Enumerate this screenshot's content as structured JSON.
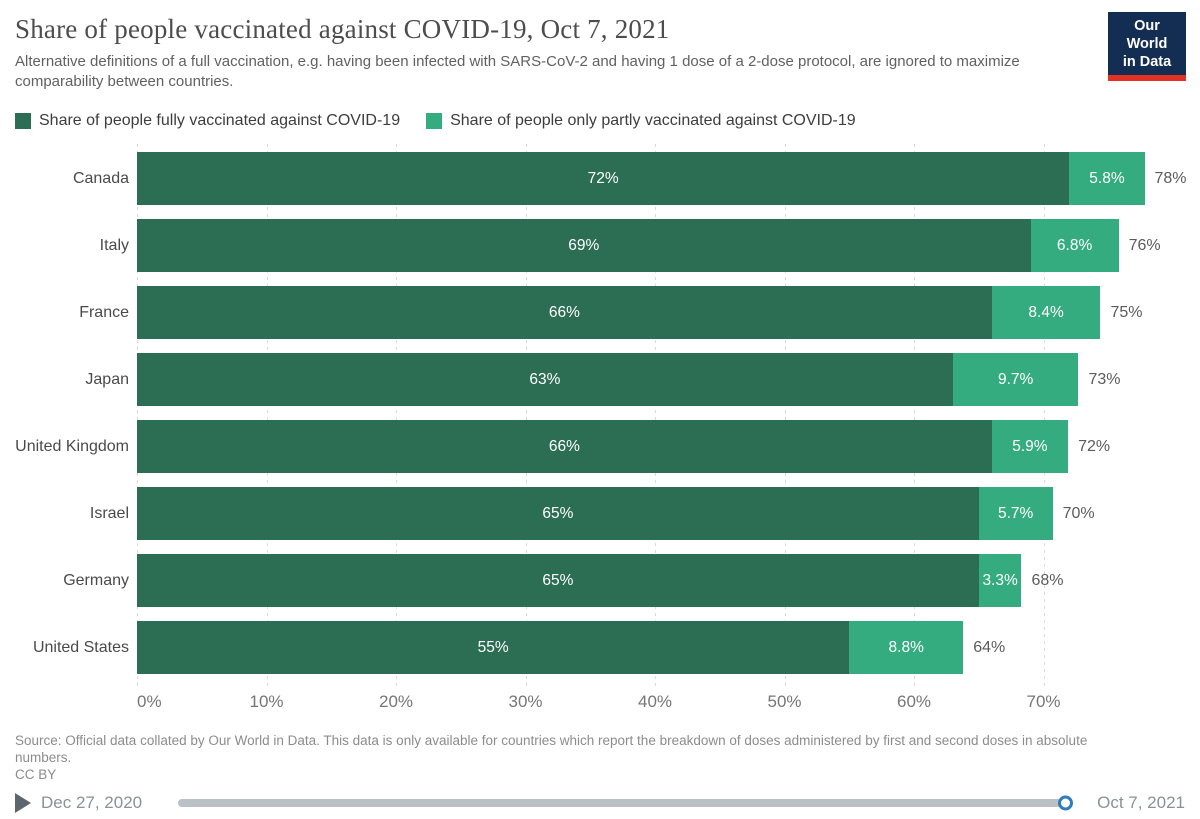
{
  "header": {
    "title": "Share of people vaccinated against COVID-19, Oct 7, 2021",
    "subtitle": "Alternative definitions of a full vaccination, e.g. having been infected with SARS-CoV-2 and having 1 dose of a 2-dose protocol, are ignored to maximize comparability between countries.",
    "logo": {
      "line1": "Our World",
      "line2": "in Data"
    }
  },
  "legend": [
    {
      "label": "Share of people fully vaccinated against COVID-19",
      "color": "#2c6e54"
    },
    {
      "label": "Share of people only partly vaccinated against COVID-19",
      "color": "#35ac80"
    }
  ],
  "chart_data": {
    "type": "bar",
    "orientation": "horizontal",
    "stacked": true,
    "categories": [
      "Canada",
      "Italy",
      "France",
      "Japan",
      "United Kingdom",
      "Israel",
      "Germany",
      "United States"
    ],
    "series": [
      {
        "name": "Share of people fully vaccinated against COVID-19",
        "color": "#2c6e54",
        "values": [
          72,
          69,
          66,
          63,
          66,
          65,
          65,
          55
        ],
        "labels": [
          "72%",
          "69%",
          "66%",
          "63%",
          "66%",
          "65%",
          "65%",
          "55%"
        ]
      },
      {
        "name": "Share of people only partly vaccinated against COVID-19",
        "color": "#35ac80",
        "values": [
          5.8,
          6.8,
          8.4,
          9.7,
          5.9,
          5.7,
          3.3,
          8.8
        ],
        "labels": [
          "5.8%",
          "6.8%",
          "8.4%",
          "9.7%",
          "5.9%",
          "5.7%",
          "3.3%",
          "8.8%"
        ]
      }
    ],
    "totals": [
      "78%",
      "76%",
      "75%",
      "73%",
      "72%",
      "70%",
      "68%",
      "64%"
    ],
    "xlabel": "",
    "ylabel": "",
    "x_ticks": [
      "0%",
      "10%",
      "20%",
      "30%",
      "40%",
      "50%",
      "60%",
      "70%"
    ],
    "x_tick_values": [
      0,
      10,
      20,
      30,
      40,
      50,
      60,
      70
    ],
    "xlim": [
      0,
      81
    ],
    "grid": true,
    "grid_style": "dashed-vertical",
    "legend_position": "top"
  },
  "footer": {
    "source": "Source: Official data collated by Our World in Data. This data is only available for countries which report the breakdown of doses administered by first and second doses in absolute numbers.",
    "license": "CC BY"
  },
  "timeline": {
    "start": "Dec 27, 2020",
    "end": "Oct 7, 2021"
  }
}
